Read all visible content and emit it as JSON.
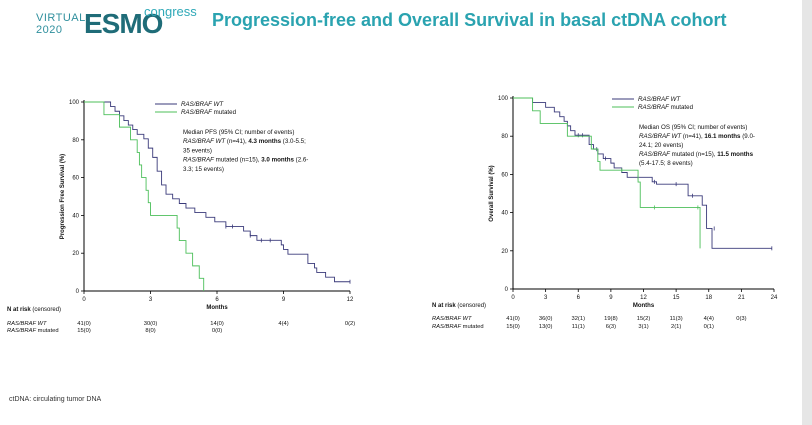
{
  "logo": {
    "virtual": "VIRTUAL",
    "year": "2020",
    "brand": "ESMO",
    "congress": "congress"
  },
  "slide_title": "Progression-free and  Overall Survival  in basal ctDNA cohort",
  "footnote": "ctDNA: circulating tumor DNA",
  "colors": {
    "wt": "#3a3a7a",
    "mut": "#4cbf5a",
    "title": "#2aa3b0"
  },
  "chart_data": [
    {
      "type": "line",
      "name": "pfs",
      "ylabel": "Progression Free Survival (%)",
      "xlabel": "Months",
      "xlim": [
        0,
        12
      ],
      "ylim": [
        0,
        100
      ],
      "xticks": [
        "0",
        "3",
        "6",
        "9",
        "12"
      ],
      "yticks": [
        "0",
        "20",
        "40",
        "60",
        "80",
        "100"
      ],
      "legend": [
        "RAS/BRAF WT",
        "RAS/BRAF mutated"
      ],
      "annotation": {
        "line1": "Median PFS  (95% CI; number of events)",
        "wt_italic": "RAS/BRAF WT",
        "wt_rest": " (n=41), ",
        "wt_bold": "4.3 months",
        "wt_ci": " (3.0-5.5;",
        "wt_ci2": "35 events)",
        "mut_italic": "RAS/BRAF",
        "mut_rest": " mutated (n=15), ",
        "mut_bold": "3.0 months",
        "mut_ci": " (2.6-",
        "mut_ci2": "3.3; 15 events)"
      },
      "series": [
        {
          "name": "RAS/BRAF WT",
          "color": "#3a3a7a",
          "steps": [
            [
              0,
              100
            ],
            [
              1.2,
              97.6
            ],
            [
              1.4,
              95.1
            ],
            [
              1.6,
              92.7
            ],
            [
              1.8,
              90.2
            ],
            [
              2.0,
              87.8
            ],
            [
              2.2,
              85.4
            ],
            [
              2.4,
              82.9
            ],
            [
              2.7,
              80.5
            ],
            [
              2.9,
              75.6
            ],
            [
              3.1,
              70.7
            ],
            [
              3.3,
              63.4
            ],
            [
              3.5,
              56.1
            ],
            [
              3.7,
              51.2
            ],
            [
              4.0,
              48.8
            ],
            [
              4.3,
              46.3
            ],
            [
              4.6,
              43.9
            ],
            [
              5.0,
              41.5
            ],
            [
              5.5,
              39.0
            ],
            [
              5.9,
              36.6
            ],
            [
              6.4,
              34.1
            ],
            [
              7.2,
              31.7
            ],
            [
              7.5,
              29.3
            ],
            [
              7.8,
              26.8
            ],
            [
              8.9,
              24.4
            ],
            [
              9.0,
              22.0
            ],
            [
              9.2,
              19.5
            ],
            [
              10.1,
              14.6
            ],
            [
              10.4,
              12.2
            ],
            [
              10.5,
              9.8
            ],
            [
              10.9,
              7.3
            ],
            [
              11.3,
              4.9
            ],
            [
              12.0,
              4.9
            ]
          ],
          "censors": [
            [
              6.4,
              34.1
            ],
            [
              6.7,
              34.1
            ],
            [
              7.5,
              29.3
            ],
            [
              8.0,
              26.8
            ],
            [
              8.4,
              26.8
            ],
            [
              12.0,
              4.9
            ]
          ]
        },
        {
          "name": "RAS/BRAF mutated",
          "color": "#4cbf5a",
          "steps": [
            [
              0,
              100
            ],
            [
              0.9,
              93.3
            ],
            [
              1.6,
              86.7
            ],
            [
              2.1,
              80.0
            ],
            [
              2.4,
              73.3
            ],
            [
              2.5,
              66.7
            ],
            [
              2.6,
              60.0
            ],
            [
              2.8,
              53.3
            ],
            [
              2.9,
              46.7
            ],
            [
              3.0,
              40.0
            ],
            [
              4.2,
              33.3
            ],
            [
              4.3,
              26.7
            ],
            [
              4.6,
              20.0
            ],
            [
              4.9,
              13.3
            ],
            [
              5.2,
              6.7
            ],
            [
              5.4,
              0.0
            ]
          ],
          "censors": []
        }
      ],
      "risk": {
        "header": "N at risk",
        "censored": "(censored)",
        "rows": [
          {
            "label": "RAS/BRAF WT",
            "values": [
              "41(0)",
              "30(0)",
              "14(0)",
              "4(4)",
              "0(2)"
            ]
          },
          {
            "label": "RAS/BRAF mutated",
            "values": [
              "15(0)",
              "8(0)",
              "0(0)",
              "",
              ""
            ]
          }
        ]
      }
    },
    {
      "type": "line",
      "name": "os",
      "ylabel": "Overall Survival (%)",
      "xlabel": "Months",
      "xlim": [
        0,
        24
      ],
      "ylim": [
        0,
        100
      ],
      "xticks": [
        "0",
        "3",
        "6",
        "9",
        "12",
        "15",
        "18",
        "21",
        "24"
      ],
      "yticks": [
        "0",
        "20",
        "40",
        "60",
        "80",
        "100"
      ],
      "legend": [
        "RAS/BRAF WT",
        "RAS/BRAF mutated"
      ],
      "annotation": {
        "line1": "Median OS (95% CI; number of events)",
        "wt_italic": "RAS/BRAF WT",
        "wt_rest": " (n=41), ",
        "wt_bold": "16.1 months",
        "wt_ci": " (9.0-",
        "wt_ci2": "24.1; 20 events)",
        "mut_italic": "RAS/BRAF",
        "mut_rest": " mutated (n=15),  ",
        "mut_bold": "11.5 months",
        "mut_ci": "",
        "mut_ci2": "(5.4-17.5; 8 events)"
      },
      "series": [
        {
          "name": "RAS/BRAF WT",
          "color": "#3a3a7a",
          "steps": [
            [
              0,
              100
            ],
            [
              1.8,
              97.6
            ],
            [
              3.0,
              95.1
            ],
            [
              3.8,
              92.7
            ],
            [
              4.3,
              90.2
            ],
            [
              4.7,
              87.8
            ],
            [
              5.0,
              85.4
            ],
            [
              5.3,
              82.9
            ],
            [
              5.7,
              80.5
            ],
            [
              7.0,
              75.6
            ],
            [
              7.4,
              73.2
            ],
            [
              7.8,
              70.7
            ],
            [
              8.3,
              68.3
            ],
            [
              9.0,
              65.9
            ],
            [
              9.3,
              63.4
            ],
            [
              10.0,
              61.0
            ],
            [
              10.5,
              58.5
            ],
            [
              12.8,
              56.1
            ],
            [
              13.2,
              54.9
            ],
            [
              16.1,
              48.8
            ],
            [
              17.4,
              43.9
            ],
            [
              17.8,
              31.7
            ],
            [
              18.3,
              21.3
            ],
            [
              23.8,
              21.3
            ]
          ],
          "censors": [
            [
              6.0,
              80.5
            ],
            [
              6.4,
              80.5
            ],
            [
              7.7,
              73.2
            ],
            [
              8.5,
              68.3
            ],
            [
              11.5,
              58.5
            ],
            [
              13.0,
              56.1
            ],
            [
              15.0,
              54.9
            ],
            [
              16.5,
              48.8
            ],
            [
              18.5,
              31.7
            ],
            [
              23.8,
              21.3
            ]
          ]
        },
        {
          "name": "RAS/BRAF mutated",
          "color": "#4cbf5a",
          "steps": [
            [
              0,
              100
            ],
            [
              1.8,
              93.3
            ],
            [
              2.5,
              86.7
            ],
            [
              5.0,
              80.0
            ],
            [
              7.2,
              73.3
            ],
            [
              7.8,
              66.7
            ],
            [
              8.0,
              62.2
            ],
            [
              11.5,
              56.0
            ],
            [
              11.7,
              42.7
            ],
            [
              17.2,
              21.3
            ]
          ],
          "censors": [
            [
              10.0,
              62.2
            ],
            [
              13.0,
              42.7
            ],
            [
              17.0,
              42.7
            ]
          ]
        }
      ],
      "risk": {
        "header": "N at risk",
        "censored": "(censored)",
        "rows": [
          {
            "label": "RAS/BRAF WT",
            "values": [
              "41(0)",
              "36(0)",
              "32(1)",
              "19(8)",
              "15(2)",
              "11(3)",
              "4(4)",
              "0(3)",
              ""
            ]
          },
          {
            "label": "RAS/BRAF mutated",
            "values": [
              "15(0)",
              "13(0)",
              "11(1)",
              "6(3)",
              "3(1)",
              "2(1)",
              "0(1)",
              "",
              ""
            ]
          }
        ]
      }
    }
  ]
}
